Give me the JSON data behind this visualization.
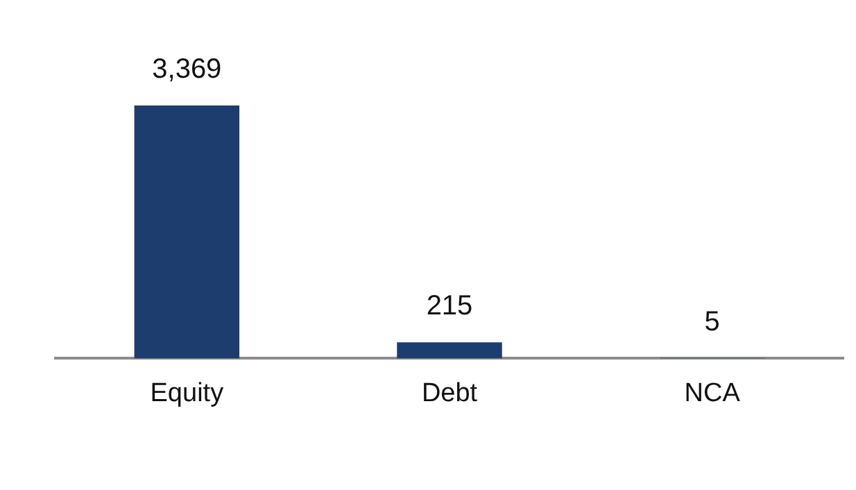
{
  "chart_data": {
    "type": "bar",
    "categories": [
      "Equity",
      "Debt",
      "NCA"
    ],
    "values": [
      3369,
      215,
      5
    ],
    "value_labels": [
      "3,369",
      "215",
      "5"
    ],
    "color": "#1c3d6e",
    "grid": false,
    "legend": false
  }
}
